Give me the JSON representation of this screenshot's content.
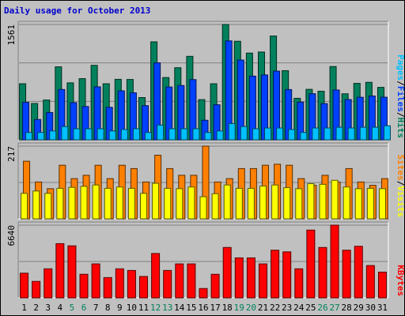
{
  "title": "Daily usage for October 2013",
  "colors": {
    "hits": "#00805c",
    "files": "#0040ff",
    "pages": "#00c0ff",
    "visits": "#ffff00",
    "sites": "#ff8000",
    "kbytes": "#ff0000",
    "weekend_day": "#00805c",
    "weekday": "#000000",
    "background": "#c0c0c0"
  },
  "chart_data": [
    {
      "type": "bar",
      "panel": "hits-files-pages",
      "ymax_label": "1561",
      "ylim": [
        0,
        1561
      ],
      "categories": [
        "1",
        "2",
        "3",
        "4",
        "5",
        "6",
        "7",
        "8",
        "9",
        "10",
        "11",
        "12",
        "13",
        "14",
        "15",
        "16",
        "17",
        "18",
        "19",
        "20",
        "21",
        "22",
        "23",
        "24",
        "25",
        "26",
        "27",
        "28",
        "29",
        "30",
        "31"
      ],
      "series": [
        {
          "name": "Hits",
          "values": [
            759,
            492,
            539,
            988,
            771,
            828,
            1008,
            759,
            819,
            817,
            572,
            1326,
            843,
            976,
            1130,
            544,
            759,
            1561,
            1334,
            1174,
            1188,
            1405,
            936,
            562,
            683,
            658,
            992,
            623,
            764,
            778,
            710
          ]
        },
        {
          "name": "Files",
          "values": [
            507,
            275,
            370,
            681,
            503,
            451,
            717,
            440,
            663,
            637,
            463,
            1042,
            715,
            735,
            815,
            265,
            475,
            1339,
            1080,
            862,
            878,
            930,
            680,
            510,
            624,
            490,
            674,
            545,
            576,
            593,
            577
          ]
        },
        {
          "name": "Pages",
          "values": [
            100,
            100,
            120,
            180,
            150,
            150,
            150,
            120,
            140,
            150,
            100,
            200,
            150,
            150,
            150,
            100,
            120,
            220,
            180,
            150,
            160,
            160,
            140,
            100,
            160,
            160,
            170,
            160,
            170,
            170,
            190
          ]
        }
      ],
      "legend": [
        "Pages",
        "Files",
        "Hits"
      ]
    },
    {
      "type": "bar",
      "panel": "visits-sites",
      "ymax_label": "217",
      "ylim": [
        0,
        217
      ],
      "categories": [
        "1",
        "2",
        "3",
        "4",
        "5",
        "6",
        "7",
        "8",
        "9",
        "10",
        "11",
        "12",
        "13",
        "14",
        "15",
        "16",
        "17",
        "18",
        "19",
        "20",
        "21",
        "22",
        "23",
        "24",
        "25",
        "26",
        "27",
        "28",
        "29",
        "30",
        "31"
      ],
      "series": [
        {
          "name": "Visits",
          "values": [
            76,
            83,
            76,
            91,
            94,
            97,
            101,
            91,
            95,
            91,
            76,
            106,
            91,
            90,
            95,
            66,
            75,
            101,
            91,
            91,
            98,
            101,
            93,
            90,
            105,
            103,
            115,
            95,
            90,
            91,
            90
          ]
        },
        {
          "name": "Sites",
          "values": [
            172,
            110,
            90,
            160,
            120,
            130,
            160,
            120,
            160,
            150,
            110,
            190,
            150,
            130,
            130,
            217,
            110,
            120,
            150,
            150,
            160,
            163,
            160,
            120,
            100,
            130,
            110,
            150,
            110,
            100,
            120
          ]
        }
      ],
      "legend": [
        "Sites",
        "Visits"
      ]
    },
    {
      "type": "bar",
      "panel": "kbytes",
      "ymax_label": "6640",
      "ylim": [
        0,
        6640
      ],
      "categories": [
        "1",
        "2",
        "3",
        "4",
        "5",
        "6",
        "7",
        "8",
        "9",
        "10",
        "11",
        "12",
        "13",
        "14",
        "15",
        "16",
        "17",
        "18",
        "19",
        "20",
        "21",
        "22",
        "23",
        "24",
        "25",
        "26",
        "27",
        "28",
        "29",
        "30",
        "31"
      ],
      "series": [
        {
          "name": "KBytes",
          "values": [
            2250,
            1500,
            2650,
            4950,
            4750,
            2150,
            3100,
            1850,
            2650,
            2500,
            1950,
            4050,
            2500,
            3100,
            3100,
            850,
            2150,
            4600,
            3650,
            3650,
            3100,
            4350,
            4200,
            2650,
            6190,
            4600,
            6640,
            4350,
            4710,
            2950,
            2350
          ]
        }
      ],
      "legend": [
        "KBytes"
      ]
    }
  ]
}
